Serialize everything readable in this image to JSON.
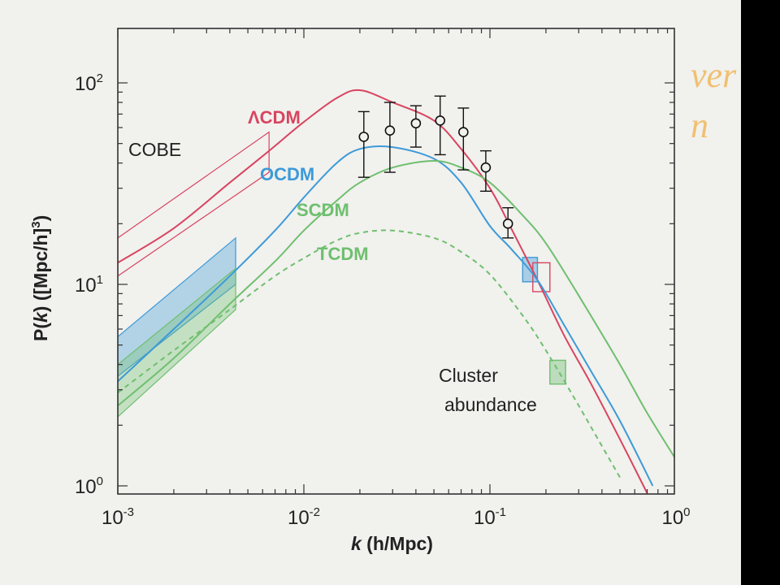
{
  "overlay_text": [
    "ver",
    "n"
  ],
  "colors": {
    "LCDM": "#d8455f",
    "OCDM": "#3d9ad8",
    "SCDM": "#6fbf6f",
    "TCDM": "#6fbf6f",
    "COBE": "#d8455f",
    "data_points": "#111111"
  },
  "chart_data": {
    "type": "line",
    "scale": {
      "x": "log",
      "y": "log"
    },
    "xlim": [
      0.001,
      1
    ],
    "ylim": [
      1,
      200
    ],
    "xlabel_main": "k",
    "xlabel_unit": " (h/Mpc)",
    "ylabel_main": "P(",
    "ylabel_k": "k",
    "ylabel_unit": ") ([Mpc/h]",
    "ylabel_exp": "3",
    "ylabel_close": ")",
    "x_ticks": [
      {
        "value": 0.001,
        "base": "10",
        "exp": "-3"
      },
      {
        "value": 0.01,
        "base": "10",
        "exp": "-2"
      },
      {
        "value": 0.1,
        "base": "10",
        "exp": "-1"
      },
      {
        "value": 1,
        "base": "10",
        "exp": "0"
      }
    ],
    "y_ticks": [
      {
        "value": 1,
        "base": "10",
        "exp": "0"
      },
      {
        "value": 10,
        "base": "10",
        "exp": "1"
      },
      {
        "value": 100,
        "base": "10",
        "exp": "2"
      }
    ],
    "series": [
      {
        "name": "ΛCDM",
        "color_key": "LCDM",
        "dash": false,
        "x": [
          0.001,
          0.002,
          0.004,
          0.0065,
          0.01,
          0.015,
          0.02,
          0.03,
          0.05,
          0.07,
          0.1,
          0.13,
          0.18,
          0.25,
          0.35,
          0.5,
          0.7
        ],
        "y": [
          12.8,
          19,
          32,
          46,
          64,
          84,
          92,
          80,
          65,
          47,
          30,
          19,
          10.5,
          5.6,
          3.2,
          1.7,
          0.92
        ]
      },
      {
        "name": "OCDM",
        "color_key": "OCDM",
        "dash": false,
        "x": [
          0.001,
          0.002,
          0.004,
          0.007,
          0.01,
          0.015,
          0.02,
          0.03,
          0.05,
          0.07,
          0.1,
          0.13,
          0.18,
          0.25,
          0.35,
          0.5,
          0.75
        ],
        "y": [
          3.3,
          6.0,
          11.0,
          18.5,
          27,
          40,
          47,
          48,
          42,
          32,
          19.5,
          15,
          10.5,
          6.3,
          3.7,
          2.1,
          1.0
        ]
      },
      {
        "name": "SCDM",
        "color_key": "SCDM",
        "dash": false,
        "x": [
          0.001,
          0.002,
          0.004,
          0.007,
          0.01,
          0.015,
          0.02,
          0.03,
          0.05,
          0.07,
          0.1,
          0.15,
          0.2,
          0.3,
          0.5,
          0.7,
          1
        ],
        "y": [
          2.5,
          4.3,
          8.0,
          13,
          18.5,
          26,
          32,
          38,
          41,
          38,
          32,
          22,
          16,
          8.8,
          4.0,
          2.3,
          1.35
        ]
      },
      {
        "name": "TCDM",
        "color_key": "TCDM",
        "dash": true,
        "x": [
          0.001,
          0.002,
          0.004,
          0.007,
          0.01,
          0.015,
          0.02,
          0.03,
          0.05,
          0.07,
          0.1,
          0.15,
          0.2,
          0.3,
          0.5
        ],
        "y": [
          2.9,
          4.7,
          7.5,
          11,
          13.5,
          16.5,
          18,
          18.5,
          17,
          14.5,
          11.2,
          7.0,
          4.7,
          2.5,
          1.1
        ]
      }
    ],
    "data_points": {
      "x": [
        0.021,
        0.029,
        0.04,
        0.054,
        0.072,
        0.095,
        0.125
      ],
      "y": [
        54,
        58,
        63,
        65,
        57,
        38,
        20
      ],
      "y_low": [
        34,
        36,
        48,
        44,
        37,
        29,
        17
      ],
      "y_high": [
        72,
        80,
        77,
        86,
        75,
        46,
        24
      ]
    },
    "bands": [
      {
        "name": "COBE",
        "color_key": "LCDM",
        "filled": false,
        "x": [
          0.001,
          0.0065
        ],
        "y_low": [
          11,
          36
        ],
        "y_high": [
          17,
          57
        ]
      },
      {
        "name": "OCDM COBE",
        "color_key": "OCDM",
        "filled": true,
        "x": [
          0.001,
          0.0043
        ],
        "y_low": [
          3.5,
          10
        ],
        "y_high": [
          5.5,
          17
        ]
      },
      {
        "name": "SCDM COBE",
        "color_key": "SCDM",
        "filled": true,
        "x": [
          0.001,
          0.0043
        ],
        "y_low": [
          2.2,
          7.5
        ],
        "y_high": [
          4.0,
          12
        ]
      }
    ],
    "boxes": [
      {
        "color_key": "OCDM",
        "filled": true,
        "x": [
          0.15,
          0.18
        ],
        "y": [
          10.3,
          13.6
        ]
      },
      {
        "color_key": "LCDM",
        "filled": false,
        "x": [
          0.17,
          0.21
        ],
        "y": [
          9.2,
          12.8
        ]
      },
      {
        "color_key": "SCDM",
        "filled": true,
        "x": [
          0.21,
          0.255
        ],
        "y": [
          3.2,
          4.2
        ]
      }
    ],
    "labels": {
      "LCDM": "ΛCDM",
      "OCDM": "OCDM",
      "SCDM": "SCDM",
      "TCDM": "TCDM",
      "COBE": "COBE",
      "cluster_line1": "Cluster",
      "cluster_line2": "abundance"
    }
  }
}
